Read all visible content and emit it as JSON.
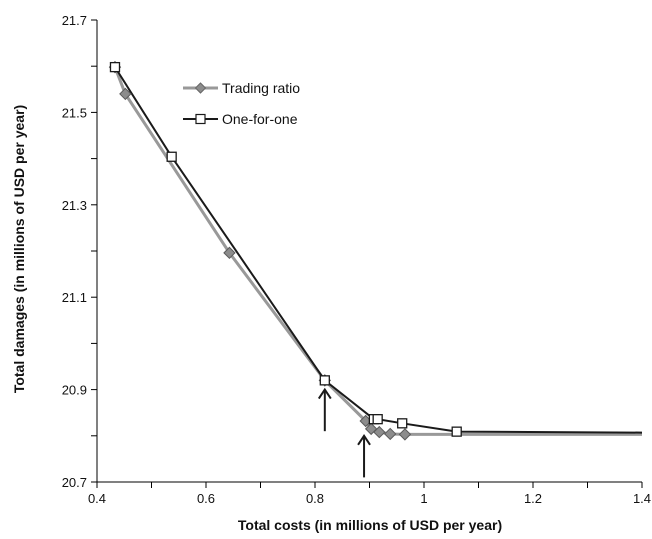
{
  "chart_data": {
    "type": "line",
    "xlabel": "Total costs (in millions of USD per year)",
    "ylabel": "Total damages (in millions of USD per year)",
    "xlim": [
      0.4,
      1.4
    ],
    "ylim": [
      20.7,
      21.7
    ],
    "x_ticks": [
      "0.4",
      "0.6",
      "0.8",
      "1",
      "1.2",
      "1.4"
    ],
    "y_ticks": [
      "20.7",
      "20.9",
      "21.1",
      "21.3",
      "21.5",
      "21.7"
    ],
    "grid": false,
    "legend_position": "upper-left",
    "series": [
      {
        "name": "Trading ratio",
        "color": "#999999",
        "marker": "diamond",
        "marker_fill": "#8c8c8c",
        "x": [
          0.433,
          0.452,
          0.643,
          0.818,
          0.893,
          0.903,
          0.918,
          0.938,
          0.965,
          1.4
        ],
        "y": [
          21.598,
          21.54,
          21.196,
          20.92,
          20.832,
          20.815,
          20.808,
          20.804,
          20.803,
          20.803
        ],
        "marker_count": 9
      },
      {
        "name": "One-for-one",
        "color": "#1a1a1a",
        "marker": "square",
        "marker_fill": "#ffffff",
        "x": [
          0.433,
          0.537,
          0.818,
          0.908,
          0.915,
          0.96,
          1.06,
          1.4
        ],
        "y": [
          21.598,
          21.404,
          20.92,
          20.836,
          20.836,
          20.827,
          20.809,
          20.807
        ],
        "marker_count": 7
      }
    ],
    "annotations": [
      {
        "type": "arrow",
        "target_x": 0.818,
        "target_y": 20.9,
        "tail_y": 20.81
      },
      {
        "type": "arrow",
        "target_x": 0.89,
        "target_y": 20.8,
        "tail_y": 20.71
      }
    ]
  }
}
